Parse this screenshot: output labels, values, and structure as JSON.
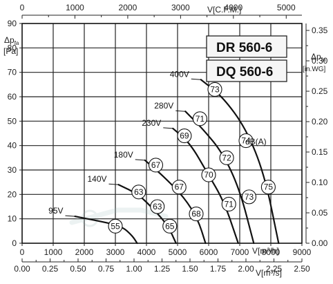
{
  "chart_data": {
    "type": "line",
    "models": [
      "DR 560-6",
      "DQ 560-6"
    ],
    "axes": {
      "x_bottom": {
        "unit": "V[m³/h]",
        "range": [
          0,
          9000
        ],
        "ticks": [
          0,
          1000,
          2000,
          3000,
          4000,
          5000,
          6000,
          7000,
          8000,
          9000
        ]
      },
      "x_bottom2": {
        "unit": "V[m³/s]",
        "range": [
          0,
          2.5
        ],
        "ticks": [
          "0.00",
          "0.25",
          "0.50",
          "0.75",
          "1.00",
          "1.25",
          "1.50",
          "1.75",
          "2.00",
          "2.25",
          "2.50"
        ]
      },
      "x_top": {
        "unit": "V[C.F.M.]",
        "ticks": [
          0,
          1000,
          2000,
          3000,
          4000,
          5000
        ]
      },
      "y_left": {
        "symbol": "Δp",
        "sub": "fa",
        "unit": "[Pa]",
        "range": [
          0,
          90
        ],
        "ticks": [
          0,
          10,
          20,
          30,
          40,
          50,
          60,
          70,
          80,
          90
        ]
      },
      "y_right": {
        "symbol": "Δp",
        "sub": "fa",
        "unit": "[in.WG]",
        "range": [
          0,
          0.3614
        ],
        "ticks": [
          "0.00",
          "0.05",
          "0.10",
          "0.15",
          "0.20",
          "0.25",
          "0.30",
          "0.35"
        ]
      },
      "grid": true
    },
    "series": [
      {
        "name": "95V",
        "points": [
          [
            1700,
            11
          ],
          [
            2500,
            9
          ],
          [
            3200,
            7
          ],
          [
            3550,
            3
          ],
          [
            3700,
            0
          ]
        ]
      },
      {
        "name": "140V",
        "points": [
          [
            3100,
            24
          ],
          [
            3750,
            20
          ],
          [
            4300,
            13
          ],
          [
            4700,
            7
          ],
          [
            4950,
            0
          ]
        ]
      },
      {
        "name": "180V",
        "points": [
          [
            3950,
            34
          ],
          [
            4500,
            28
          ],
          [
            5200,
            19
          ],
          [
            5650,
            10
          ],
          [
            5900,
            0
          ]
        ]
      },
      {
        "name": "230V",
        "points": [
          [
            4850,
            47
          ],
          [
            5400,
            41
          ],
          [
            5950,
            29
          ],
          [
            6500,
            17
          ],
          [
            6950,
            0
          ]
        ]
      },
      {
        "name": "280V",
        "points": [
          [
            5250,
            54
          ],
          [
            5800,
            47
          ],
          [
            6450,
            37
          ],
          [
            7000,
            22
          ],
          [
            7450,
            0
          ]
        ]
      },
      {
        "name": "400V",
        "points": [
          [
            5750,
            67
          ],
          [
            6450,
            60
          ],
          [
            7200,
            47
          ],
          [
            7800,
            28
          ],
          [
            8250,
            0
          ]
        ]
      }
    ],
    "sound_level_unit": "dB(A)",
    "sound_levels": [
      {
        "value": 55,
        "x": 3000,
        "y": 7
      },
      {
        "value": 65,
        "x": 4750,
        "y": 7
      },
      {
        "value": 63,
        "x": 3750,
        "y": 21
      },
      {
        "value": 63,
        "x": 4350,
        "y": 15
      },
      {
        "value": 67,
        "x": 4300,
        "y": 32
      },
      {
        "value": 67,
        "x": 5050,
        "y": 23
      },
      {
        "value": 68,
        "x": 5600,
        "y": 12
      },
      {
        "value": 69,
        "x": 5220,
        "y": 44
      },
      {
        "value": 70,
        "x": 6000,
        "y": 28
      },
      {
        "value": 71,
        "x": 5720,
        "y": 51
      },
      {
        "value": 71,
        "x": 6650,
        "y": 16
      },
      {
        "value": 72,
        "x": 6580,
        "y": 35
      },
      {
        "value": 73,
        "x": 6200,
        "y": 63
      },
      {
        "value": 73,
        "x": 7300,
        "y": 19
      },
      {
        "value": 74,
        "x": 7200,
        "y": 42
      },
      {
        "value": 75,
        "x": 7920,
        "y": 23
      }
    ]
  }
}
